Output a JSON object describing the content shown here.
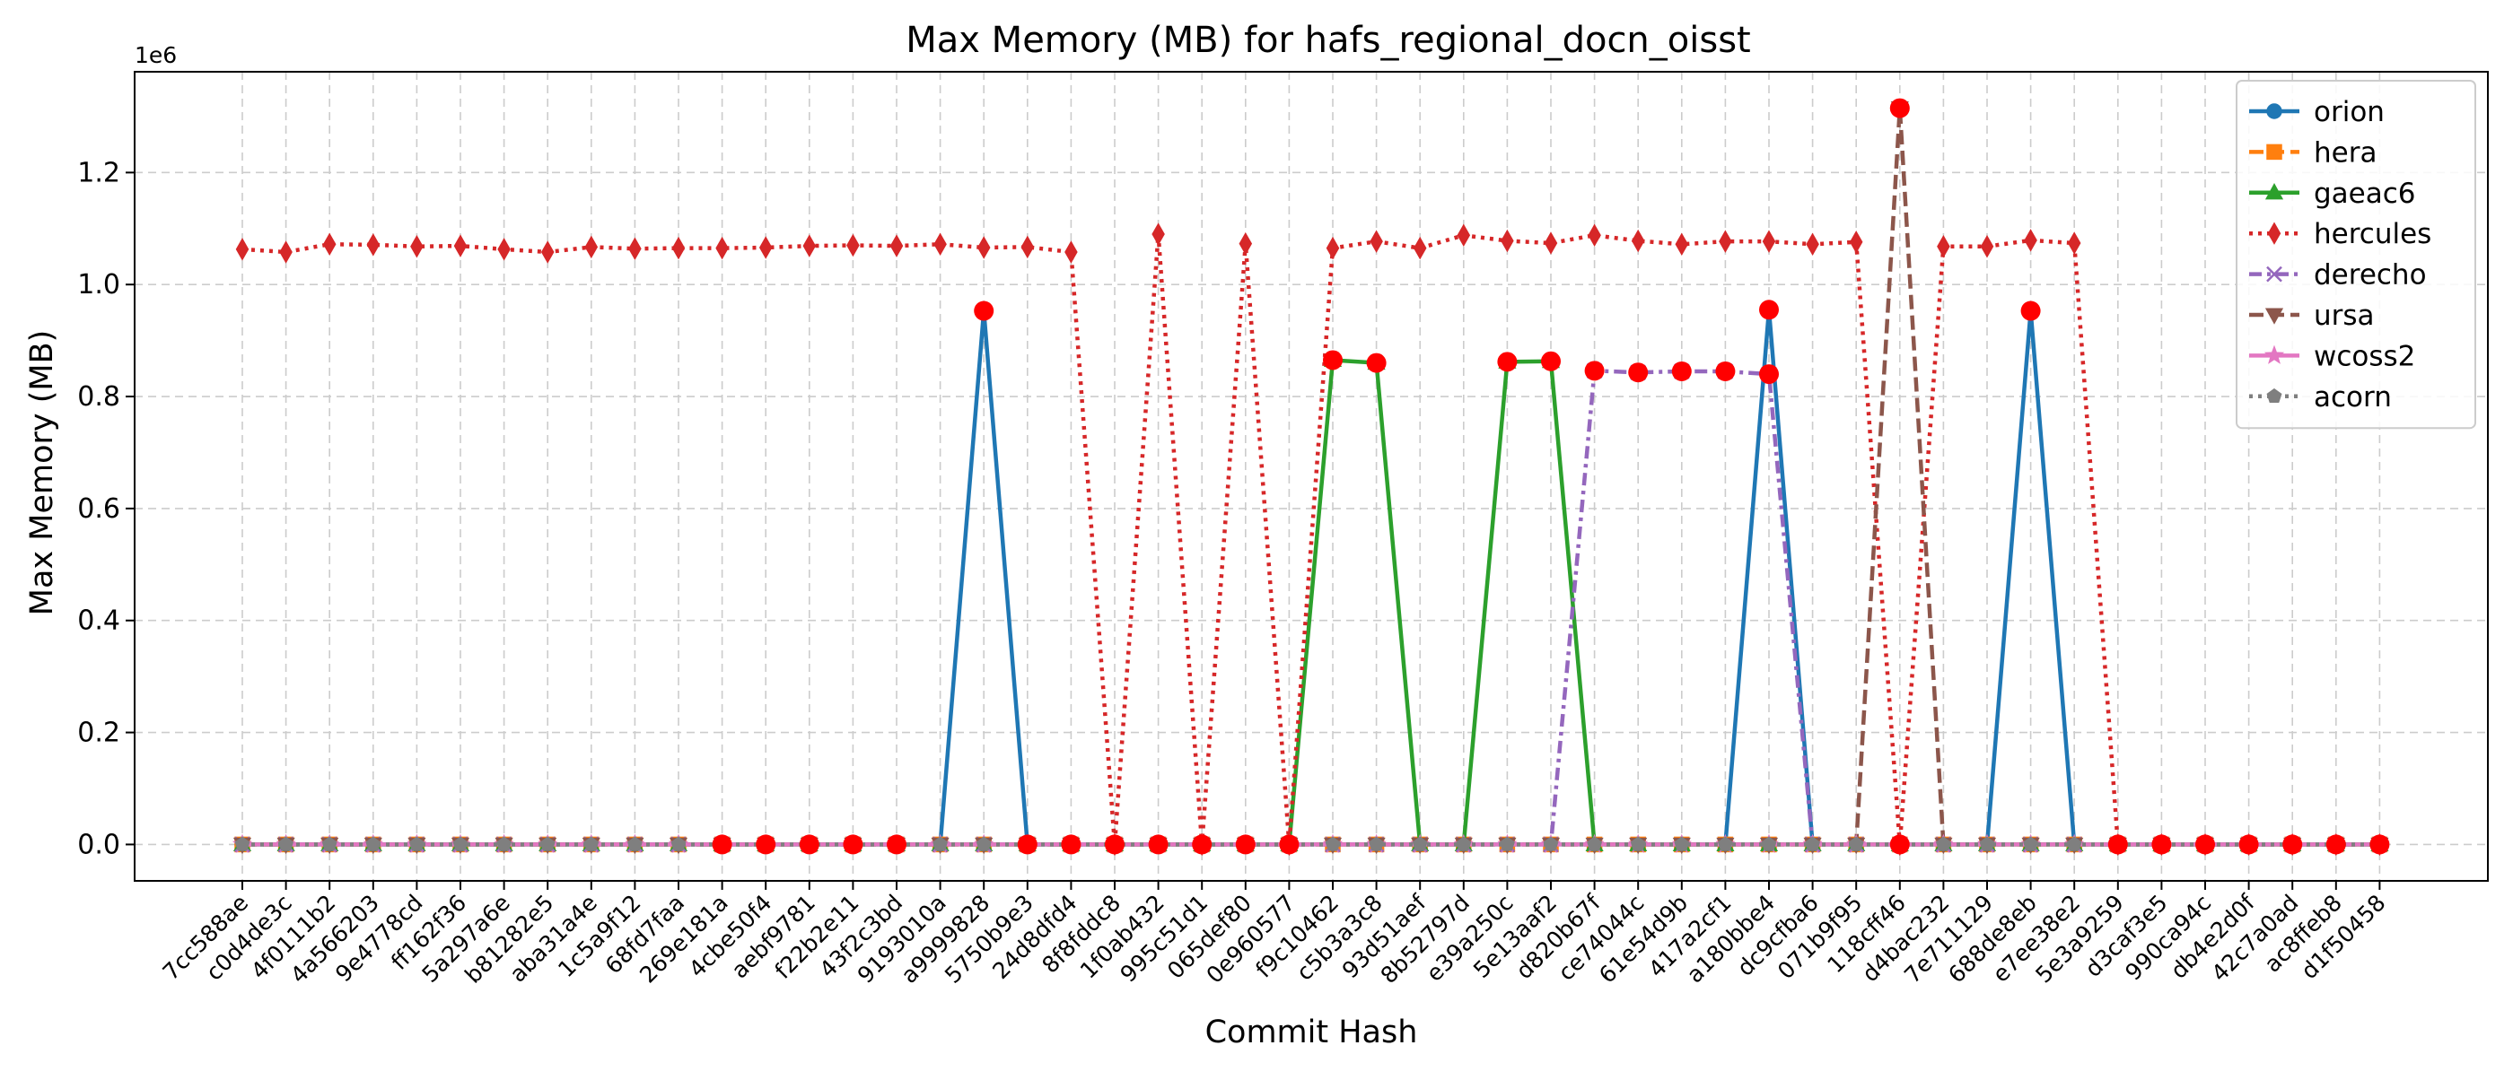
{
  "chart_data": {
    "type": "line",
    "title": "Max Memory (MB) for hafs_regional_docn_oisst",
    "xlabel": "Commit Hash",
    "ylabel": "Max Memory (MB)",
    "y_offset_label": "1e6",
    "ylim": [
      -65000,
      1380000
    ],
    "yticks": [
      0.0,
      0.2,
      0.4,
      0.6,
      0.8,
      1.0,
      1.2
    ],
    "ytick_labels": [
      "0.0",
      "0.2",
      "0.4",
      "0.6",
      "0.8",
      "1.0",
      "1.2"
    ],
    "grid": true,
    "legend_position": "top-right",
    "categories": [
      "7cc588ae",
      "c0d4de3c",
      "4f0111b2",
      "4a566203",
      "9e4778cd",
      "ff162f36",
      "5a297a6e",
      "b81282e5",
      "aba31a4e",
      "1c5a9f12",
      "68fd7faa",
      "269e181a",
      "4cbe50f4",
      "aebf9781",
      "f22b2e11",
      "43f2c3bd",
      "9193010a",
      "a9999828",
      "5750b9e3",
      "24d8dfd4",
      "8f8fddc8",
      "1f0ab432",
      "995c51d1",
      "065def80",
      "0e960577",
      "f9c10462",
      "c5b3a3c8",
      "93d51aef",
      "8b52797d",
      "e39a250c",
      "5e13aaf2",
      "d820b67f",
      "ce74044c",
      "61e54d9b",
      "417a2cf1",
      "a180bbe4",
      "dc9cfba6",
      "071b9f95",
      "118cff46",
      "d4bac232",
      "7e711129",
      "688de8eb",
      "e7ee38e2",
      "5e3a9259",
      "d3caf3e5",
      "990ca94c",
      "db4e2d0f",
      "42c7a0ad",
      "ac8ffeb8",
      "d1f50458"
    ],
    "series": [
      {
        "name": "orion",
        "color": "#1f77b4",
        "dash": "solid",
        "marker": "circle",
        "values": [
          0,
          0,
          0,
          0,
          0,
          0,
          0,
          0,
          0,
          0,
          0,
          0,
          0,
          0,
          0,
          0,
          0,
          953000,
          0,
          0,
          0,
          0,
          0,
          0,
          0,
          0,
          0,
          0,
          0,
          0,
          0,
          0,
          0,
          0,
          0,
          955000,
          0,
          0,
          0,
          0,
          0,
          953000,
          0,
          0,
          0,
          0,
          0,
          0,
          0,
          0
        ]
      },
      {
        "name": "hera",
        "color": "#ff7f0e",
        "dash": "dashed",
        "marker": "square",
        "values": [
          0,
          0,
          0,
          0,
          0,
          0,
          0,
          0,
          0,
          0,
          0,
          0,
          0,
          0,
          0,
          0,
          0,
          0,
          0,
          0,
          0,
          0,
          0,
          0,
          0,
          0,
          0,
          0,
          0,
          0,
          0,
          0,
          0,
          0,
          0,
          0,
          0,
          0,
          0,
          0,
          0,
          0,
          0,
          0,
          0,
          0,
          0,
          0,
          0,
          0
        ]
      },
      {
        "name": "gaeac6",
        "color": "#2ca02c",
        "dash": "solid",
        "marker": "triangle",
        "values": [
          0,
          0,
          0,
          0,
          0,
          0,
          0,
          0,
          0,
          0,
          0,
          0,
          0,
          0,
          0,
          0,
          0,
          0,
          0,
          0,
          0,
          0,
          0,
          0,
          0,
          865000,
          860000,
          0,
          0,
          862000,
          863000,
          0,
          0,
          0,
          0,
          0,
          0,
          0,
          0,
          0,
          0,
          0,
          0,
          0,
          0,
          0,
          0,
          0,
          0,
          0
        ]
      },
      {
        "name": "hercules",
        "color": "#d62728",
        "dash": "dotted",
        "marker": "diamond",
        "values": [
          1063000,
          1058000,
          1072000,
          1071000,
          1068000,
          1069000,
          1063000,
          1058000,
          1067000,
          1064000,
          1065000,
          1065000,
          1066000,
          1069000,
          1070000,
          1069000,
          1072000,
          1066000,
          1067000,
          1058000,
          0,
          1090000,
          0,
          1073000,
          0,
          1065000,
          1077000,
          1065000,
          1088000,
          1078000,
          1074000,
          1088000,
          1078000,
          1072000,
          1077000,
          1077000,
          1072000,
          1076000,
          0,
          1068000,
          1068000,
          1079000,
          1074000,
          0,
          0,
          0,
          0,
          0,
          0,
          0
        ]
      },
      {
        "name": "derecho",
        "color": "#9467bd",
        "dash": "dashdot",
        "marker": "x",
        "values": [
          0,
          0,
          0,
          0,
          0,
          0,
          0,
          0,
          0,
          0,
          0,
          0,
          0,
          0,
          0,
          0,
          0,
          0,
          0,
          0,
          0,
          0,
          0,
          0,
          0,
          0,
          0,
          0,
          0,
          0,
          0,
          846000,
          843000,
          845000,
          845000,
          840000,
          0,
          0,
          0,
          0,
          0,
          0,
          0,
          0,
          0,
          0,
          0,
          0,
          0,
          0
        ]
      },
      {
        "name": "ursa",
        "color": "#8c564b",
        "dash": "dashed",
        "marker": "triangle-down",
        "values": [
          0,
          0,
          0,
          0,
          0,
          0,
          0,
          0,
          0,
          0,
          0,
          0,
          0,
          0,
          0,
          0,
          0,
          0,
          0,
          0,
          0,
          0,
          0,
          0,
          0,
          0,
          0,
          0,
          0,
          0,
          0,
          0,
          0,
          0,
          0,
          0,
          0,
          0,
          1315000,
          0,
          0,
          0,
          0,
          0,
          0,
          0,
          0,
          0,
          0,
          0
        ]
      },
      {
        "name": "wcoss2",
        "color": "#e377c2",
        "dash": "solid",
        "marker": "star",
        "values": [
          0,
          0,
          0,
          0,
          0,
          0,
          0,
          0,
          0,
          0,
          0,
          0,
          0,
          0,
          0,
          0,
          0,
          0,
          0,
          0,
          0,
          0,
          0,
          0,
          0,
          0,
          0,
          0,
          0,
          0,
          0,
          0,
          0,
          0,
          0,
          0,
          0,
          0,
          0,
          0,
          0,
          0,
          0,
          0,
          0,
          0,
          0,
          0,
          0,
          0
        ]
      },
      {
        "name": "acorn",
        "color": "#7f7f7f",
        "dash": "dotted",
        "marker": "pentagon",
        "values": [
          0,
          0,
          0,
          0,
          0,
          0,
          0,
          0,
          0,
          0,
          0,
          0,
          0,
          0,
          0,
          0,
          0,
          0,
          0,
          0,
          0,
          0,
          0,
          0,
          0,
          0,
          0,
          0,
          0,
          0,
          0,
          0,
          0,
          0,
          0,
          0,
          0,
          0,
          0,
          0,
          0,
          0,
          0,
          0,
          0,
          0,
          0,
          0,
          0,
          0
        ]
      }
    ],
    "highlight_color": "#ff0000",
    "highlights": [
      {
        "x": "269e181a",
        "y": 0
      },
      {
        "x": "4cbe50f4",
        "y": 0
      },
      {
        "x": "aebf9781",
        "y": 0
      },
      {
        "x": "f22b2e11",
        "y": 0
      },
      {
        "x": "43f2c3bd",
        "y": 0
      },
      {
        "x": "a9999828",
        "y": 953000
      },
      {
        "x": "5750b9e3",
        "y": 0
      },
      {
        "x": "24d8dfd4",
        "y": 0
      },
      {
        "x": "8f8fddc8",
        "y": 0
      },
      {
        "x": "1f0ab432",
        "y": 0
      },
      {
        "x": "995c51d1",
        "y": 0
      },
      {
        "x": "065def80",
        "y": 0
      },
      {
        "x": "0e960577",
        "y": 0
      },
      {
        "x": "f9c10462",
        "y": 865000
      },
      {
        "x": "c5b3a3c8",
        "y": 860000
      },
      {
        "x": "e39a250c",
        "y": 862000
      },
      {
        "x": "5e13aaf2",
        "y": 863000
      },
      {
        "x": "d820b67f",
        "y": 846000
      },
      {
        "x": "ce74044c",
        "y": 843000
      },
      {
        "x": "61e54d9b",
        "y": 845000
      },
      {
        "x": "417a2cf1",
        "y": 845000
      },
      {
        "x": "a180bbe4",
        "y": 955000
      },
      {
        "x": "a180bbe4",
        "y": 840000
      },
      {
        "x": "118cff46",
        "y": 1315000
      },
      {
        "x": "118cff46",
        "y": 0
      },
      {
        "x": "688de8eb",
        "y": 953000
      },
      {
        "x": "5e3a9259",
        "y": 0
      },
      {
        "x": "d3caf3e5",
        "y": 0
      },
      {
        "x": "990ca94c",
        "y": 0
      },
      {
        "x": "db4e2d0f",
        "y": 0
      },
      {
        "x": "42c7a0ad",
        "y": 0
      },
      {
        "x": "ac8ffeb8",
        "y": 0
      },
      {
        "x": "d1f50458",
        "y": 0
      }
    ]
  }
}
